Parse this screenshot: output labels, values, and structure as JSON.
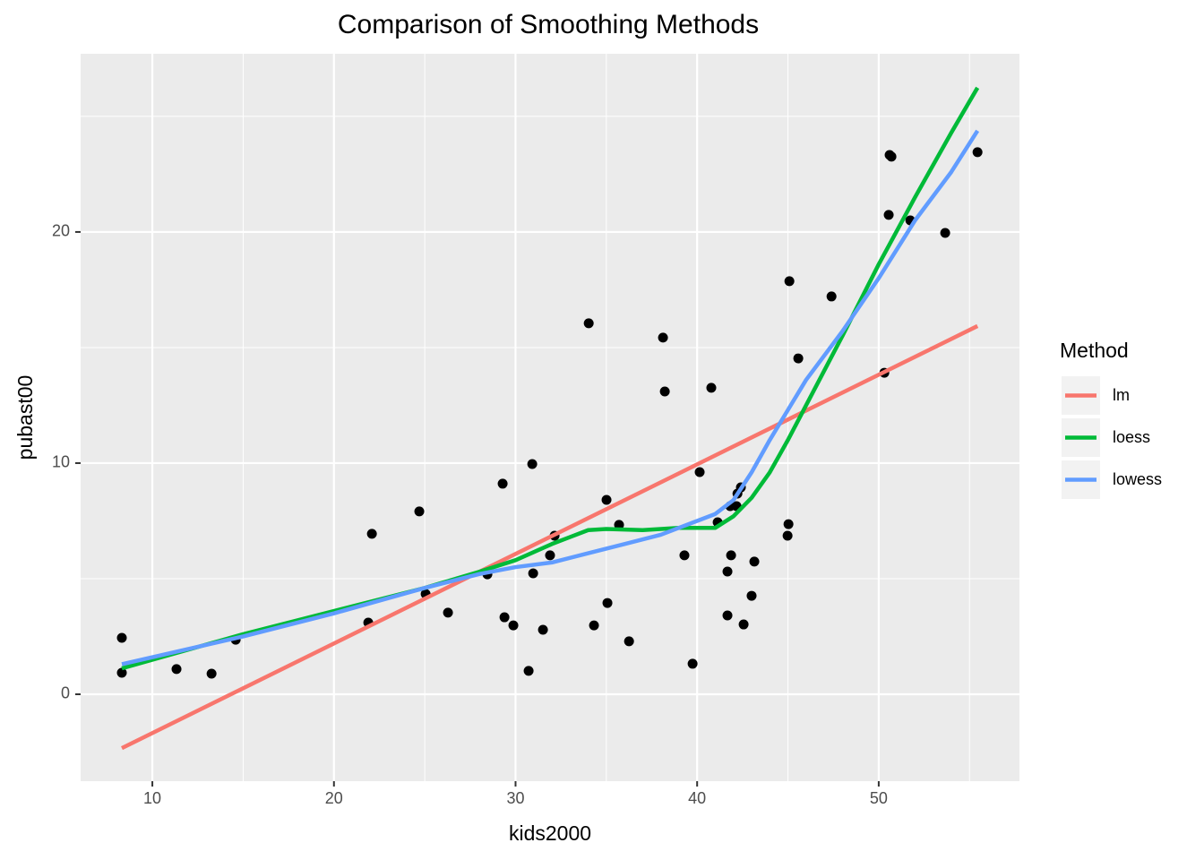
{
  "chart_data": {
    "type": "scatter",
    "title": "Comparison of Smoothing Methods",
    "x_label": "kids2000",
    "y_label": "pubast00",
    "legend_title": "Method",
    "legend_position": "right",
    "grid": true,
    "point_color": "#000000",
    "xlim": [
      6.05,
      57.75
    ],
    "xticks": [
      10,
      20,
      30,
      40,
      50
    ],
    "ylim": [
      -3.76,
      27.71
    ],
    "yticks": [
      0,
      10,
      20
    ],
    "points": {
      "x": [
        8.32,
        8.32,
        11.33,
        13.26,
        14.59,
        21.89,
        22.09,
        24.7,
        25.05,
        26.28,
        28.45,
        29.29,
        29.39,
        29.88,
        30.72,
        30.92,
        30.97,
        31.51,
        31.9,
        32.15,
        34.03,
        34.32,
        35.01,
        35.06,
        35.7,
        36.25,
        38.12,
        38.22,
        39.3,
        39.75,
        40.14,
        40.78,
        41.13,
        41.67,
        41.67,
        41.82,
        41.87,
        42.17,
        42.22,
        42.41,
        42.56,
        43.0,
        43.15,
        44.98,
        45.03,
        45.08,
        45.57,
        47.4,
        50.31,
        50.55,
        50.6,
        50.7,
        51.74,
        53.66,
        55.44
      ],
      "y": [
        2.44,
        0.93,
        1.09,
        0.89,
        2.36,
        3.1,
        6.94,
        7.91,
        4.34,
        3.53,
        5.19,
        9.11,
        3.33,
        2.98,
        1.01,
        9.96,
        5.23,
        2.79,
        6.01,
        6.86,
        16.05,
        2.98,
        8.41,
        3.95,
        7.33,
        2.29,
        15.43,
        13.1,
        6.01,
        1.32,
        9.61,
        13.26,
        7.44,
        5.31,
        3.41,
        8.14,
        6.01,
        8.14,
        8.68,
        8.95,
        3.02,
        4.26,
        5.74,
        6.86,
        7.36,
        17.87,
        14.53,
        17.21,
        13.91,
        20.74,
        23.33,
        23.26,
        20.5,
        19.96,
        23.45
      ]
    },
    "series": [
      {
        "name": "lm",
        "color": "#F8766D",
        "x": [
          8.32,
          55.44
        ],
        "values": [
          -2.33,
          15.93
        ]
      },
      {
        "name": "loess",
        "color": "#00BA38",
        "x": [
          8.32,
          15,
          20,
          25,
          28,
          30,
          32,
          34,
          35,
          37,
          39,
          41,
          42,
          43,
          44,
          45,
          46,
          48,
          50,
          52,
          54,
          55.44
        ],
        "values": [
          1.12,
          2.6,
          3.6,
          4.6,
          5.3,
          5.8,
          6.5,
          7.1,
          7.15,
          7.1,
          7.2,
          7.2,
          7.7,
          8.5,
          9.6,
          11,
          12.5,
          15.5,
          18.6,
          21.5,
          24.3,
          26.24
        ]
      },
      {
        "name": "lowess",
        "color": "#619CFF",
        "x": [
          8.32,
          15,
          20,
          25,
          28,
          30,
          32,
          34,
          36,
          38,
          40,
          41,
          42,
          43,
          44,
          45,
          46,
          48,
          50,
          52,
          54,
          55.44
        ],
        "values": [
          1.3,
          2.5,
          3.5,
          4.6,
          5.2,
          5.5,
          5.7,
          6.1,
          6.5,
          6.9,
          7.5,
          7.8,
          8.4,
          9.6,
          11,
          12.3,
          13.6,
          15.7,
          18,
          20.5,
          22.6,
          24.38
        ]
      }
    ]
  }
}
